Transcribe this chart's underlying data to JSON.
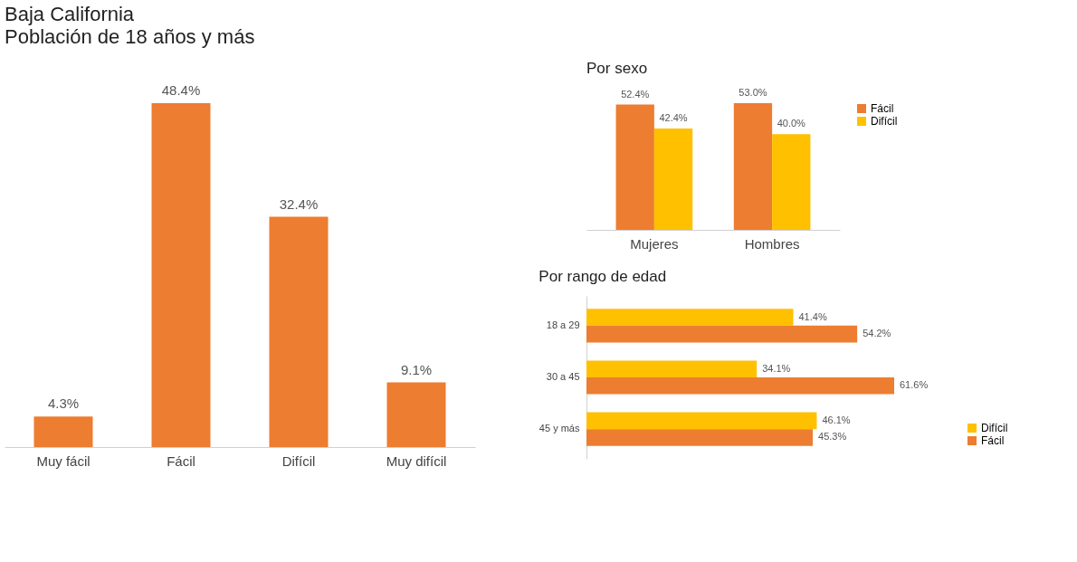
{
  "chart_data": [
    {
      "type": "bar",
      "title": "Baja California",
      "subtitle": "Población de 18 años y más",
      "categories": [
        "Muy fácil",
        "Fácil",
        "Difícil",
        "Muy difícil"
      ],
      "values": [
        4.3,
        48.4,
        32.4,
        9.1
      ],
      "color": "#ed7d31",
      "value_labels": [
        "4.3%",
        "48.4%",
        "32.4%",
        "9.1%"
      ],
      "tick_labels": "x",
      "grid": false
    },
    {
      "type": "bar",
      "title": "Por sexo",
      "categories": [
        "Mujeres",
        "Hombres"
      ],
      "series": [
        {
          "name": "Fácil",
          "color": "#ed7d31",
          "values": [
            52.4,
            53.0
          ],
          "value_labels": [
            "52.4%",
            "53.0%"
          ]
        },
        {
          "name": "Difícil",
          "color": "#ffc000",
          "values": [
            42.4,
            40.0
          ],
          "value_labels": [
            "42.4%",
            "40.0%"
          ]
        }
      ],
      "legend": "right",
      "tick_labels": "x",
      "grid": false
    },
    {
      "type": "bar",
      "orientation": "horizontal",
      "title": "Por rango de edad",
      "categories": [
        "18 a 29",
        "30 a 45",
        "45 y más"
      ],
      "series": [
        {
          "name": "Difícil",
          "color": "#ffc000",
          "values": [
            41.4,
            34.1,
            46.1
          ],
          "value_labels": [
            "41.4%",
            "34.1%",
            "46.1%"
          ]
        },
        {
          "name": "Fácil",
          "color": "#ed7d31",
          "values": [
            54.2,
            61.6,
            45.3
          ],
          "value_labels": [
            "54.2%",
            "61.6%",
            "45.3%"
          ]
        }
      ],
      "legend": "bottom right",
      "tick_labels": "y",
      "grid": false
    }
  ]
}
